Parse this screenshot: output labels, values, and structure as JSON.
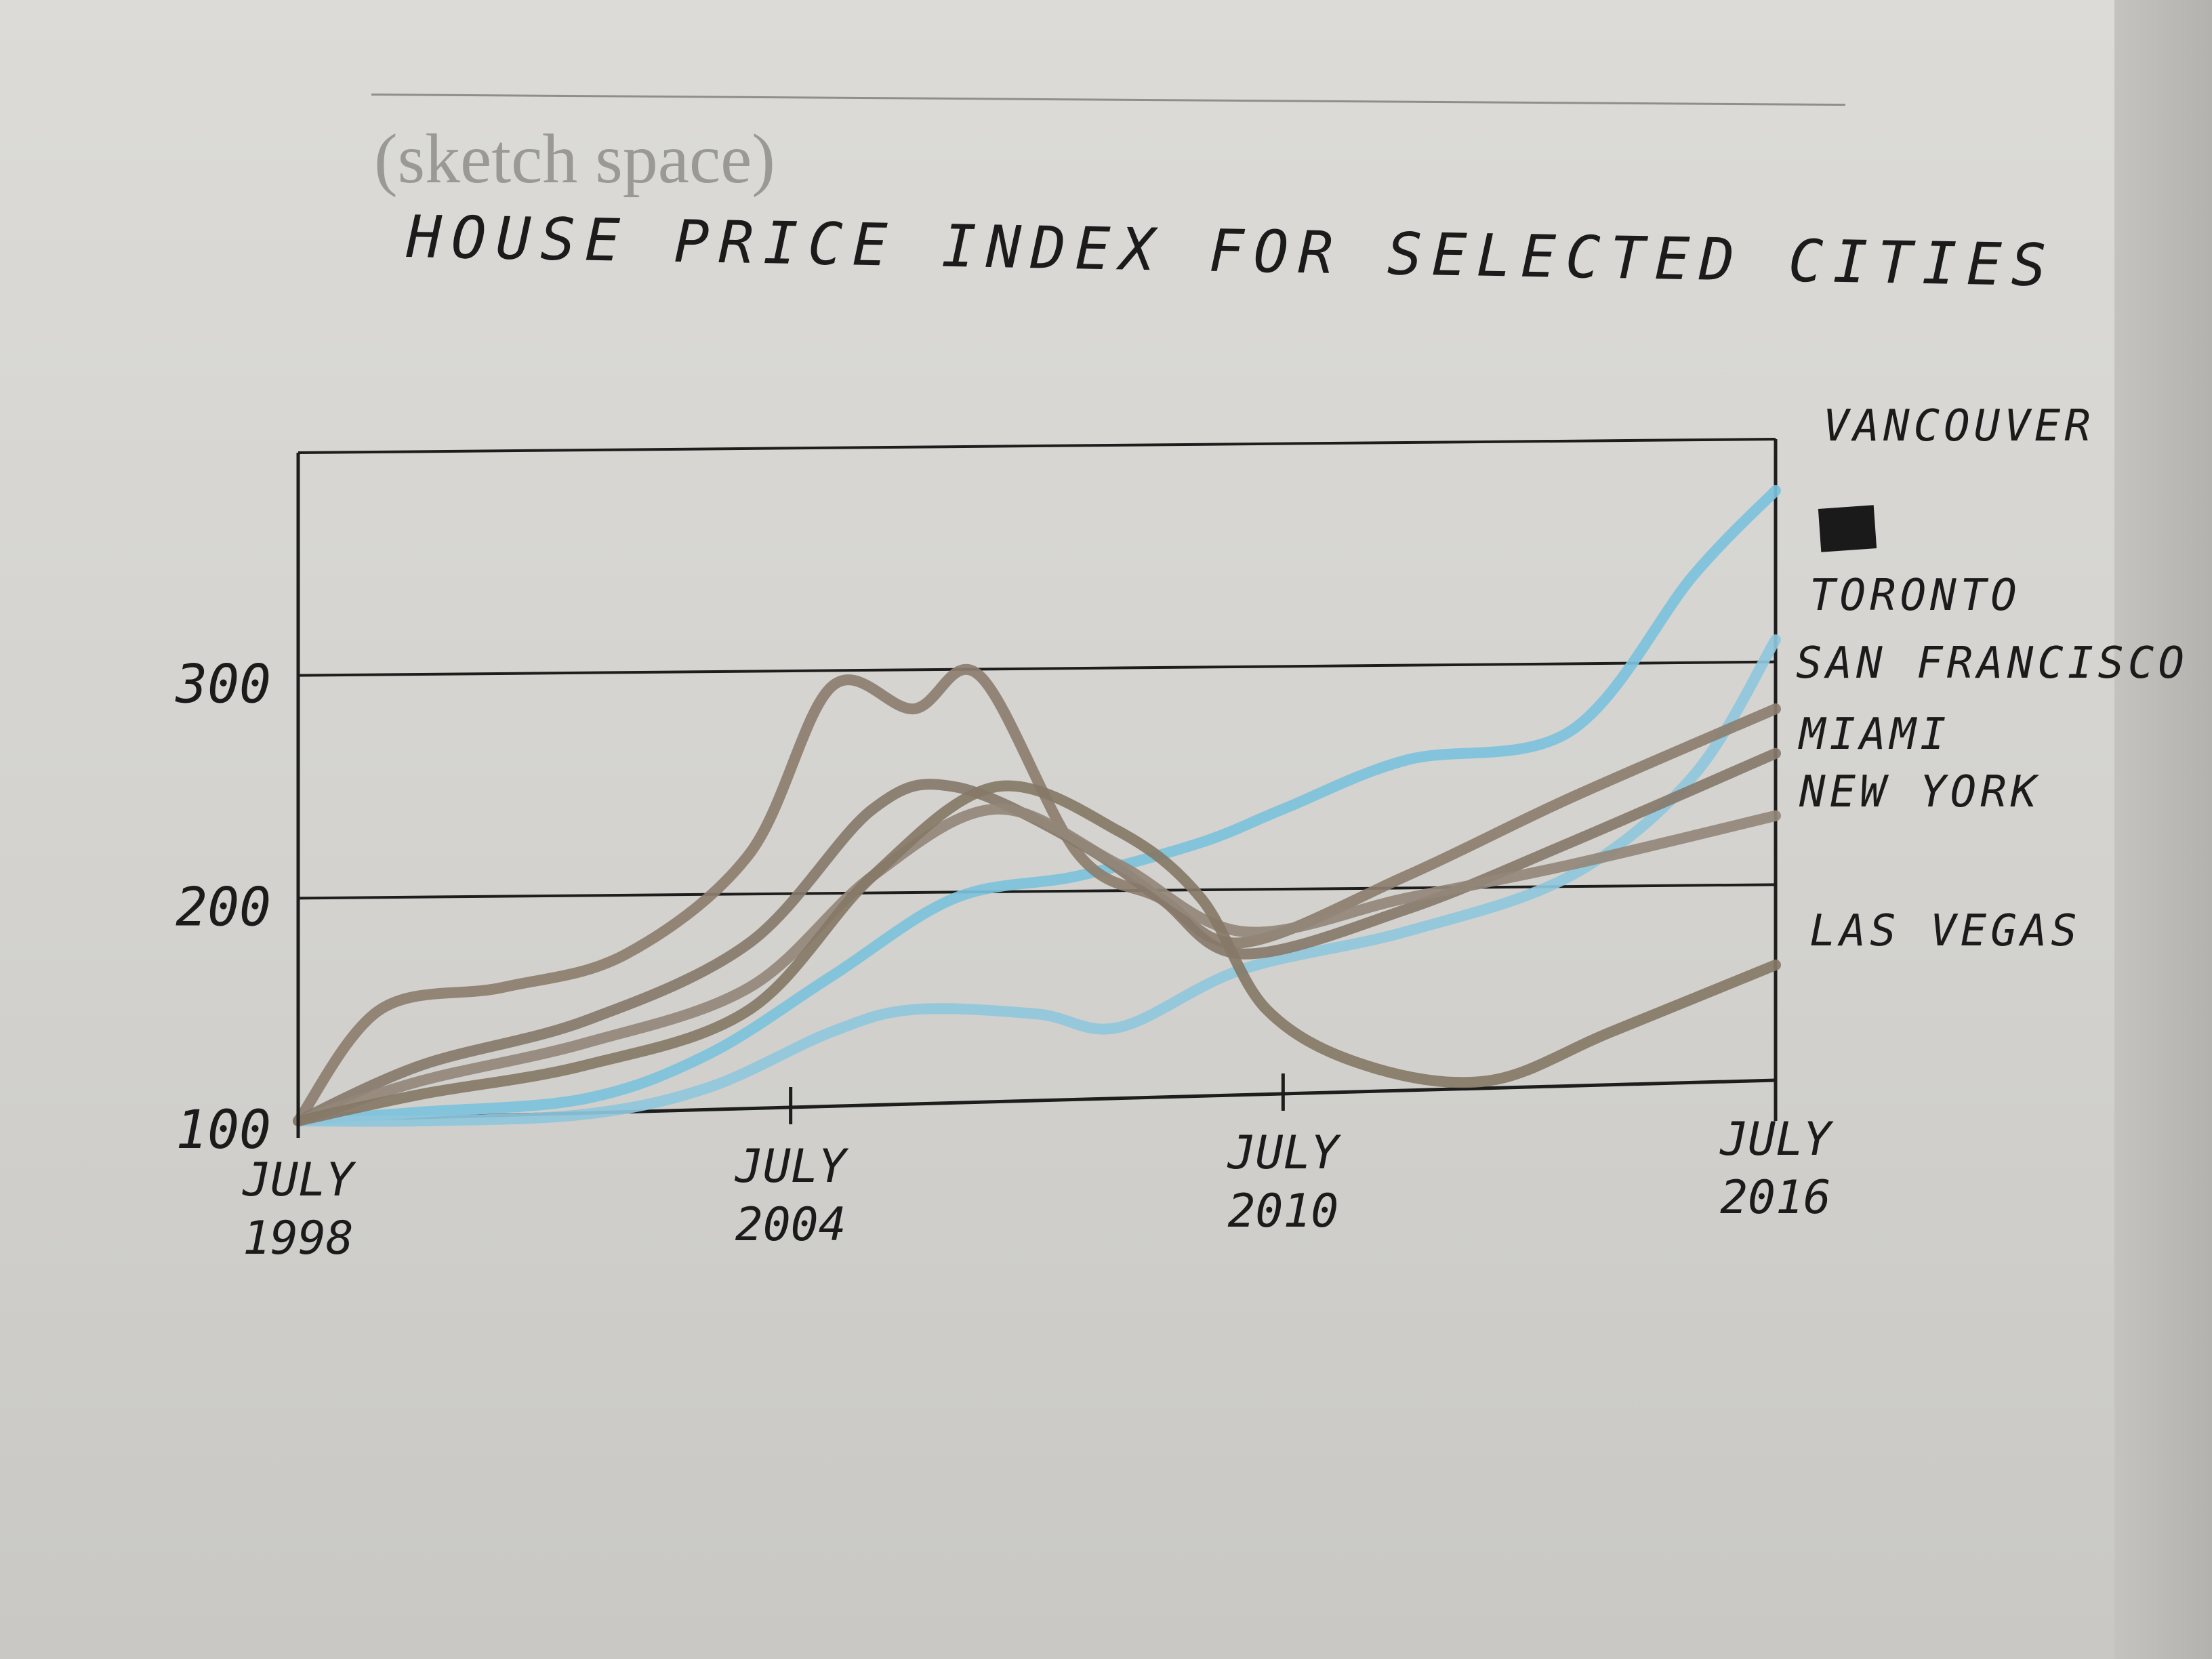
{
  "header": {
    "sketch_label": "(sketch space)"
  },
  "chart_data": {
    "type": "line",
    "title": "HOUSE PRICE INDEX FOR SELECTED CITIES",
    "x_ticks": [
      "JULY 1998",
      "JULY 2004",
      "JULY 2010",
      "JULY 2016"
    ],
    "xlim": [
      1998.5,
      2016.5
    ],
    "ylim": [
      100,
      400
    ],
    "y_ticks": [
      100,
      200,
      300
    ],
    "grid": "horizontal",
    "legend": "right",
    "legend_swatch_color": "#1a1a1a",
    "series": [
      {
        "name": "VANCOUVER",
        "color": "#7cc2dc",
        "x": [
          1998.5,
          2000,
          2002,
          2003.5,
          2005,
          2006.5,
          2008,
          2009.5,
          2010.5,
          2012,
          2014,
          2015.5,
          2016.5
        ],
        "y": [
          100,
          104,
          110,
          130,
          165,
          200,
          210,
          225,
          240,
          262,
          275,
          345,
          383
        ]
      },
      {
        "name": "TORONTO",
        "color": "#8fc7dc",
        "x": [
          1998.5,
          2000,
          2002,
          2003.5,
          2005,
          2006,
          2007.5,
          2008.5,
          2010,
          2012,
          2014,
          2015.5,
          2016.5
        ],
        "y": [
          100,
          100,
          103,
          115,
          140,
          150,
          148,
          142,
          168,
          185,
          210,
          255,
          316
        ]
      },
      {
        "name": "SAN FRANCISCO",
        "color": "#8c7e6f",
        "x": [
          1998.5,
          1999.5,
          2001,
          2002.5,
          2004,
          2005,
          2006,
          2006.8,
          2008,
          2009,
          2010,
          2012,
          2014,
          2016.5
        ],
        "y": [
          100,
          150,
          160,
          175,
          220,
          295,
          285,
          300,
          220,
          200,
          180,
          210,
          245,
          285
        ]
      },
      {
        "name": "MIAMI",
        "color": "#877a6c",
        "x": [
          1998.5,
          2000,
          2002,
          2004,
          2005.5,
          2006.5,
          2008,
          2009,
          2010,
          2012,
          2014,
          2016.5
        ],
        "y": [
          100,
          125,
          145,
          180,
          240,
          250,
          225,
          200,
          175,
          195,
          225,
          265
        ]
      },
      {
        "name": "NEW YORK",
        "color": "#938779",
        "x": [
          1998.5,
          2000,
          2002,
          2004,
          2005.5,
          2007,
          2008.5,
          2010,
          2012,
          2014,
          2016.5
        ],
        "y": [
          100,
          118,
          135,
          160,
          210,
          240,
          215,
          185,
          200,
          215,
          237
        ]
      },
      {
        "name": "LAS VEGAS",
        "color": "#857867",
        "x": [
          1998.5,
          2000,
          2002,
          2004,
          2005.5,
          2007,
          2008.5,
          2009.5,
          2010.3,
          2011.5,
          2013,
          2014.5,
          2016.5
        ],
        "y": [
          100,
          112,
          125,
          150,
          210,
          250,
          230,
          200,
          150,
          125,
          118,
          140,
          170
        ]
      }
    ]
  }
}
